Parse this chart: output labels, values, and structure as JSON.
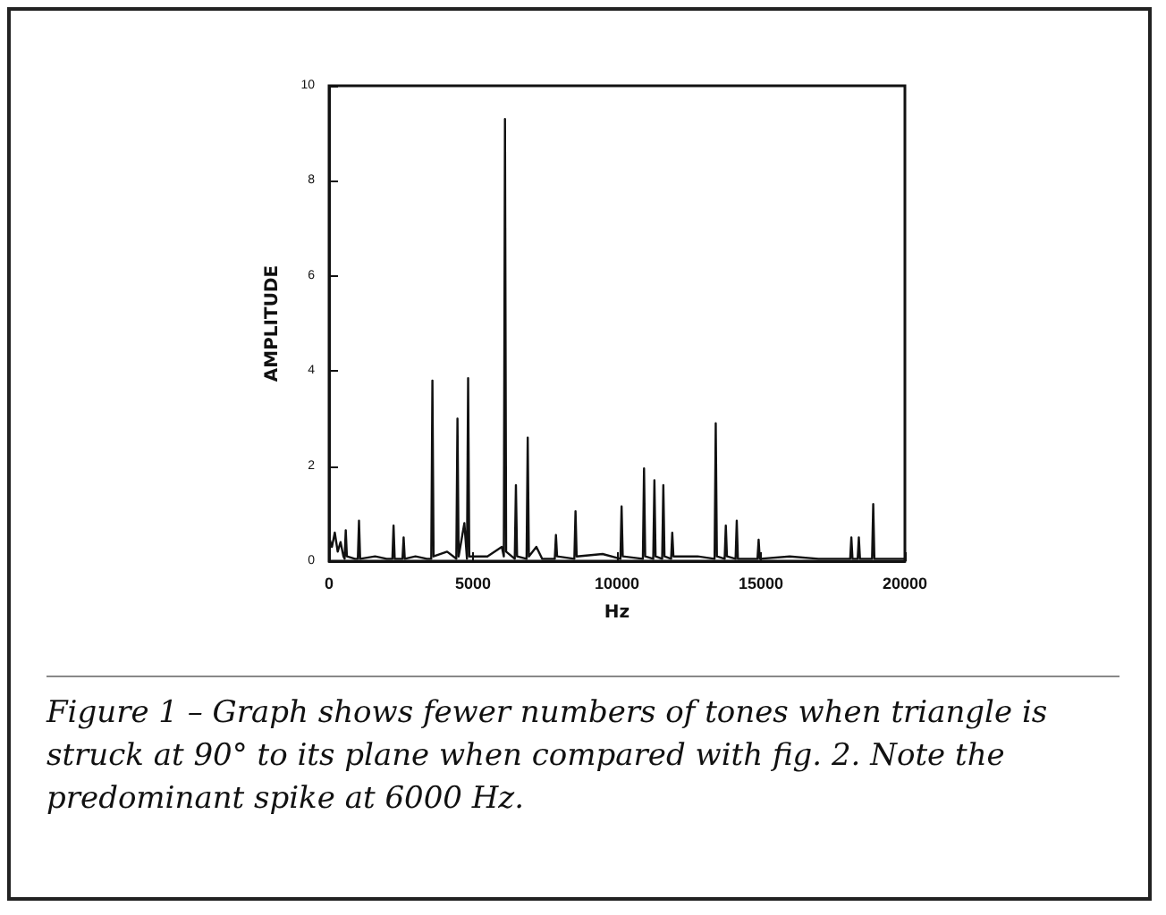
{
  "chart_data": {
    "type": "line",
    "xlabel": "Hz",
    "ylabel": "AMPLITUDE",
    "x": [
      0,
      100,
      200,
      300,
      400,
      500,
      540,
      580,
      620,
      900,
      1000,
      1040,
      1080,
      1600,
      2000,
      2200,
      2240,
      2280,
      2550,
      2590,
      2630,
      3000,
      3400,
      3550,
      3590,
      3630,
      4100,
      4420,
      4460,
      4500,
      4700,
      4790,
      4830,
      4870,
      5500,
      6000,
      6070,
      6110,
      6150,
      6450,
      6490,
      6530,
      6860,
      6900,
      6940,
      7200,
      7400,
      7840,
      7880,
      7920,
      8520,
      8560,
      8600,
      9500,
      10120,
      10160,
      10200,
      10900,
      10940,
      10980,
      11260,
      11300,
      11340,
      11570,
      11610,
      11650,
      11880,
      11920,
      11960,
      12800,
      13390,
      13430,
      13470,
      13740,
      13780,
      13820,
      14120,
      14160,
      14200,
      14880,
      14920,
      14960,
      16000,
      17000,
      18100,
      18140,
      18180,
      18360,
      18400,
      18440,
      18860,
      18900,
      18940,
      20000
    ],
    "series": [
      {
        "color": "#111111",
        "values": [
          0.5,
          0.3,
          0.6,
          0.2,
          0.4,
          0.1,
          0.05,
          0.65,
          0.1,
          0.05,
          0.05,
          0.85,
          0.05,
          0.1,
          0.05,
          0.05,
          0.75,
          0.05,
          0.05,
          0.5,
          0.05,
          0.1,
          0.05,
          0.05,
          3.8,
          0.1,
          0.2,
          0.05,
          3.0,
          0.1,
          0.8,
          0.05,
          3.85,
          0.1,
          0.1,
          0.3,
          0.1,
          9.3,
          0.2,
          0.05,
          1.6,
          0.1,
          0.05,
          2.6,
          0.1,
          0.3,
          0.05,
          0.05,
          0.55,
          0.1,
          0.05,
          1.05,
          0.1,
          0.15,
          0.05,
          1.15,
          0.1,
          0.05,
          1.95,
          0.1,
          0.05,
          1.7,
          0.1,
          0.05,
          1.6,
          0.1,
          0.05,
          0.6,
          0.1,
          0.1,
          0.05,
          2.9,
          0.1,
          0.05,
          0.75,
          0.1,
          0.05,
          0.85,
          0.05,
          0.05,
          0.45,
          0.05,
          0.1,
          0.05,
          0.05,
          0.5,
          0.05,
          0.05,
          0.5,
          0.05,
          0.05,
          1.2,
          0.05,
          0.05
        ]
      }
    ],
    "xlim": [
      0,
      20000
    ],
    "xticks": [
      0,
      5000,
      10000,
      15000,
      20000
    ],
    "ylim": [
      0,
      10
    ],
    "yticks": [
      0,
      2,
      4,
      6,
      8,
      10
    ],
    "grid": false,
    "marker": "none",
    "line_style": "solid",
    "annotations": [
      "Figure 1 – Graph shows fewer numbers of tones when triangle is struck at 90° to its plane when compared with fig. 2. Note the predominant spike at 6000 Hz."
    ]
  }
}
